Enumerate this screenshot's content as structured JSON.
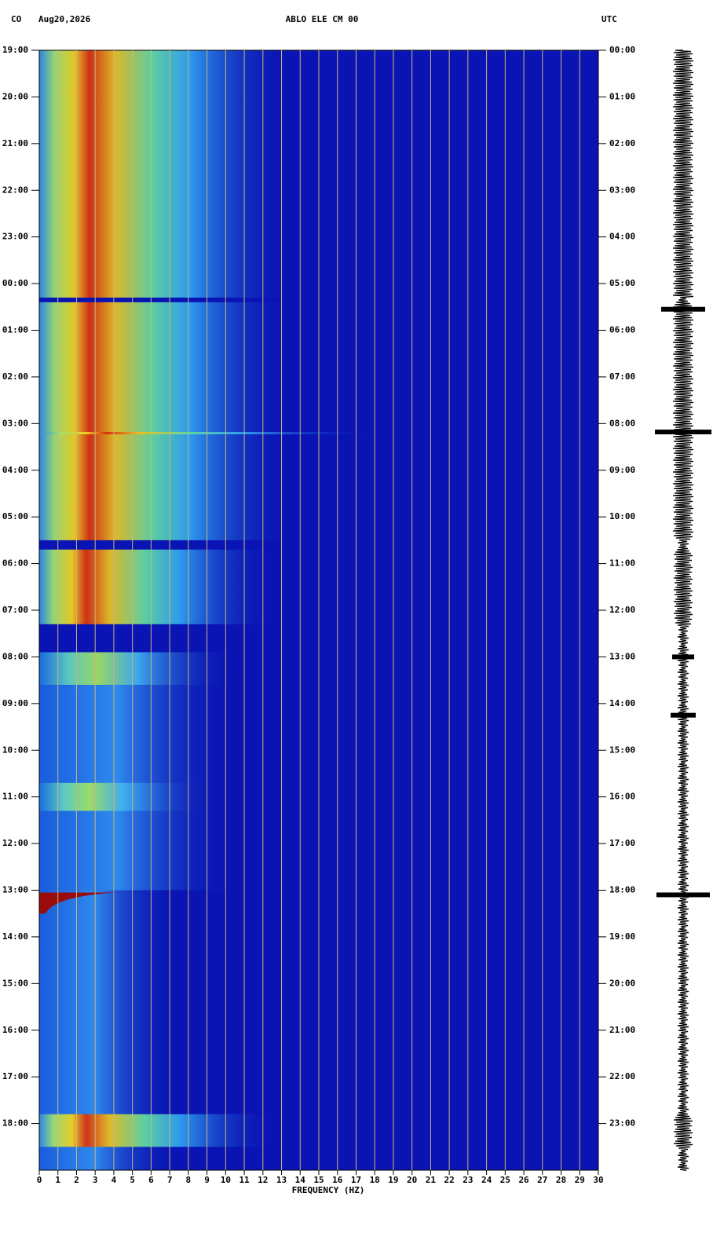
{
  "chart_data": {
    "type": "spectrogram",
    "header_left": "CO",
    "date": "Aug20,2026",
    "title": "ABLO ELE CM 00",
    "timezone": "UTC",
    "xlabel": "FREQUENCY (HZ)",
    "xlim": [
      0,
      30
    ],
    "xticks": [
      0,
      1,
      2,
      3,
      4,
      5,
      6,
      7,
      8,
      9,
      10,
      11,
      12,
      13,
      14,
      15,
      16,
      17,
      18,
      19,
      20,
      21,
      22,
      23,
      24,
      25,
      26,
      27,
      28,
      29,
      30
    ],
    "ylim": [
      0,
      24
    ],
    "yticks": [
      {
        "value": 0,
        "label": "19:00"
      },
      {
        "value": 1,
        "label": "20:00"
      },
      {
        "value": 2,
        "label": "21:00"
      },
      {
        "value": 3,
        "label": "22:00"
      },
      {
        "value": 4,
        "label": "23:00"
      },
      {
        "value": 5,
        "label": "00:00"
      },
      {
        "value": 6,
        "label": "01:00"
      },
      {
        "value": 7,
        "label": "02:00"
      },
      {
        "value": 8,
        "label": "03:00"
      },
      {
        "value": 9,
        "label": "04:00"
      },
      {
        "value": 10,
        "label": "05:00"
      },
      {
        "value": 11,
        "label": "06:00"
      },
      {
        "value": 12,
        "label": "07:00"
      },
      {
        "value": 13,
        "label": "08:00"
      },
      {
        "value": 14,
        "label": "09:00"
      },
      {
        "value": 15,
        "label": "10:00"
      },
      {
        "value": 16,
        "label": "11:00"
      },
      {
        "value": 17,
        "label": "12:00"
      },
      {
        "value": 18,
        "label": "13:00"
      },
      {
        "value": 19,
        "label": "14:00"
      },
      {
        "value": 20,
        "label": "15:00"
      },
      {
        "value": 21,
        "label": "16:00"
      },
      {
        "value": 22,
        "label": "17:00"
      },
      {
        "value": 23,
        "label": "18:00"
      }
    ],
    "y2lim": [
      0,
      24
    ],
    "y2ticks": [
      {
        "value": 0,
        "label": "00:00"
      },
      {
        "value": 1,
        "label": "01:00"
      },
      {
        "value": 2,
        "label": "02:00"
      },
      {
        "value": 3,
        "label": "03:00"
      },
      {
        "value": 4,
        "label": "04:00"
      },
      {
        "value": 5,
        "label": "05:00"
      },
      {
        "value": 6,
        "label": "06:00"
      },
      {
        "value": 7,
        "label": "07:00"
      },
      {
        "value": 8,
        "label": "08:00"
      },
      {
        "value": 9,
        "label": "09:00"
      },
      {
        "value": 10,
        "label": "10:00"
      },
      {
        "value": 11,
        "label": "11:00"
      },
      {
        "value": 12,
        "label": "12:00"
      },
      {
        "value": 13,
        "label": "13:00"
      },
      {
        "value": 14,
        "label": "14:00"
      },
      {
        "value": 15,
        "label": "15:00"
      },
      {
        "value": 16,
        "label": "16:00"
      },
      {
        "value": 17,
        "label": "17:00"
      },
      {
        "value": 18,
        "label": "18:00"
      },
      {
        "value": 19,
        "label": "19:00"
      },
      {
        "value": 20,
        "label": "20:00"
      },
      {
        "value": 21,
        "label": "21:00"
      },
      {
        "value": 22,
        "label": "22:00"
      },
      {
        "value": 23,
        "label": "23:00"
      }
    ],
    "grid": true,
    "grid_color": "#c8b878",
    "background": "#0a14b4"
  }
}
